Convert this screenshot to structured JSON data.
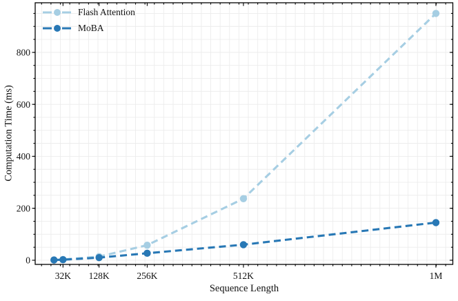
{
  "chart_data": {
    "type": "line",
    "title": "",
    "xlabel": "Sequence Length",
    "ylabel": "Computation Time (ms)",
    "x_unit_of_values": "K",
    "x": [
      8,
      32,
      128,
      256,
      512,
      1024
    ],
    "series": [
      {
        "name": "Flash Attention",
        "color": "#a6cee3",
        "values": [
          1,
          3,
          14,
          58,
          237,
          950
        ]
      },
      {
        "name": "MoBA",
        "color": "#2878b5",
        "values": [
          1,
          2,
          10,
          27,
          60,
          145
        ]
      }
    ],
    "x_ticks": [
      {
        "value": 32,
        "label": "32K"
      },
      {
        "value": 128,
        "label": "128K"
      },
      {
        "value": 256,
        "label": "256K"
      },
      {
        "value": 512,
        "label": "512K"
      },
      {
        "value": 1024,
        "label": "1M"
      }
    ],
    "y_ticks": [
      {
        "value": 0,
        "label": "0"
      },
      {
        "value": 200,
        "label": "200"
      },
      {
        "value": 400,
        "label": "400"
      },
      {
        "value": 600,
        "label": "600"
      },
      {
        "value": 800,
        "label": "800"
      }
    ],
    "xlim": [
      -42,
      1069
    ],
    "ylim": [
      -16,
      991
    ],
    "x_minor_step": 25,
    "y_minor_step": 50,
    "grid": true,
    "line_style": "dashed",
    "marker": "circle",
    "legend_position": "upper left",
    "legend_frame": false,
    "axis_color": "#000000",
    "grid_color": "#ececec",
    "text_color": "#111111"
  }
}
